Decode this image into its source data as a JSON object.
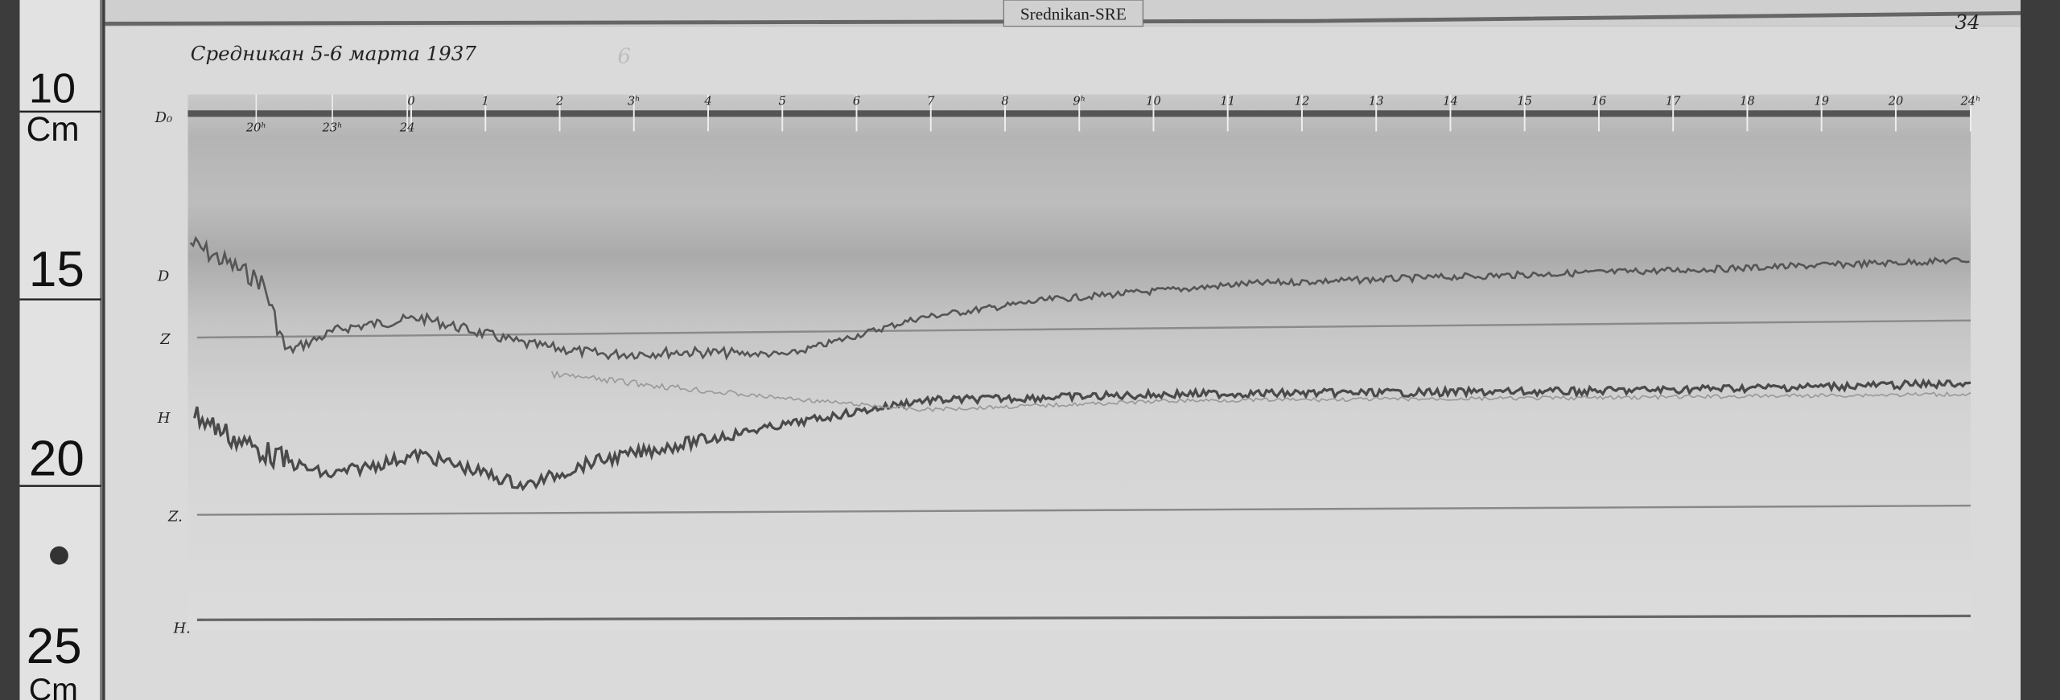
{
  "station_label": "Srednikan-SRE",
  "sheet_title": "Средникан 5-6 марта 1937",
  "sheet_number": "34",
  "circled_mark": "6",
  "ruler": {
    "numbers": [
      "10",
      "15",
      "20",
      "25"
    ],
    "unit_top": "Cm",
    "unit_bottom": "Cm"
  },
  "trace_labels": {
    "d0": "D₀",
    "d": "D",
    "z": "Z",
    "h": "H",
    "z0": "Z.",
    "h0": "H."
  },
  "hour_marks_above": [
    "0",
    "1",
    "2",
    "3ʰ",
    "4",
    "5",
    "6",
    "7",
    "8",
    "9ʰ",
    "10",
    "11",
    "12",
    "13",
    "14",
    "15",
    "16",
    "17",
    "18",
    "19",
    "20",
    "24ʰ"
  ],
  "hour_marks_below": [
    "20ʰ",
    "23ʰ",
    "24"
  ],
  "colors": {
    "paper": "#d8d8d8",
    "band": "#a9a9a9",
    "trace": "#4a4a4a",
    "background": "#3a3a3a"
  }
}
